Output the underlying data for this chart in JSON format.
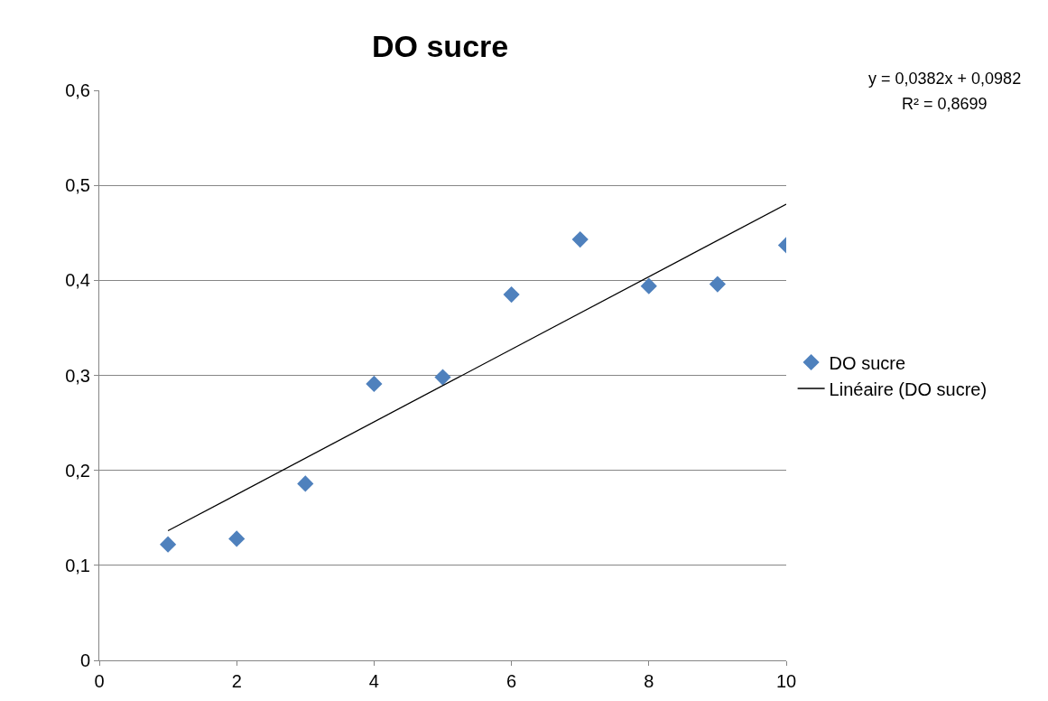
{
  "chart_data": {
    "type": "scatter",
    "title": "DO sucre",
    "x": [
      1,
      2,
      3,
      4,
      5,
      6,
      7,
      8,
      9,
      10
    ],
    "series": [
      {
        "name": "DO sucre",
        "color": "#4f81bd",
        "marker": "diamond",
        "values": [
          0.122,
          0.128,
          0.186,
          0.291,
          0.298,
          0.385,
          0.443,
          0.394,
          0.396,
          0.437
        ]
      },
      {
        "name": "Linéaire (DO sucre)",
        "type": "line",
        "color": "#000000",
        "marker": "none",
        "x": [
          1,
          10
        ],
        "values": [
          0.1364,
          0.4802
        ]
      }
    ],
    "xlim": [
      0,
      10
    ],
    "xticks": [
      0,
      2,
      4,
      6,
      8,
      10
    ],
    "ylim": [
      0,
      0.6
    ],
    "yticks": [
      {
        "value": 0,
        "label": "0"
      },
      {
        "value": 0.1,
        "label": "0,1"
      },
      {
        "value": 0.2,
        "label": "0,2"
      },
      {
        "value": 0.3,
        "label": "0,3"
      },
      {
        "value": 0.4,
        "label": "0,4"
      },
      {
        "value": 0.5,
        "label": "0,5"
      },
      {
        "value": 0.6,
        "label": "0,6"
      }
    ],
    "grid": "y",
    "legend": "right",
    "annotations": [
      "y = 0,0382x + 0,0982",
      "R² = 0,8699"
    ]
  }
}
